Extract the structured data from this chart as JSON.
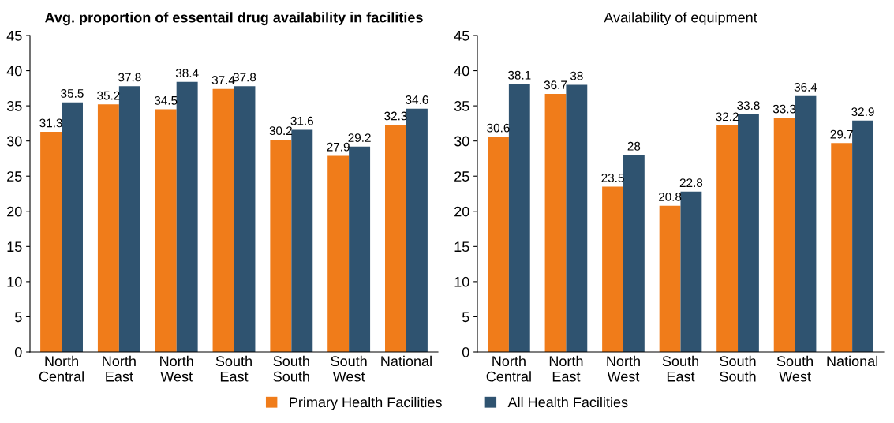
{
  "chart_data": [
    {
      "type": "bar",
      "title": "Avg. proportion of essentail drug availability in facilities",
      "categories": [
        "North\nCentral",
        "North\nEast",
        "North\nWest",
        "South\nEast",
        "South\nSouth",
        "South\nWest",
        "National"
      ],
      "series": [
        {
          "name": "Primary Health Facilities",
          "color": "#f07c1a",
          "values": [
            31.3,
            35.2,
            34.5,
            37.4,
            30.2,
            27.9,
            32.3
          ]
        },
        {
          "name": "All Health Facilities",
          "color": "#2f5370",
          "values": [
            35.5,
            37.8,
            38.4,
            37.8,
            31.6,
            29.2,
            34.6
          ]
        }
      ],
      "ylim": [
        0,
        45
      ],
      "yticks": [
        0,
        5,
        10,
        15,
        20,
        25,
        30,
        35,
        40,
        45
      ],
      "data_labels": true,
      "grid": false,
      "legend": "bottom"
    },
    {
      "type": "bar",
      "title": "Availability of equipment",
      "categories": [
        "North\nCentral",
        "North\nEast",
        "North\nWest",
        "South\nEast",
        "South\nSouth",
        "South\nWest",
        "National"
      ],
      "series": [
        {
          "name": "Primary Health Facilities",
          "color": "#f07c1a",
          "values": [
            30.6,
            36.7,
            23.5,
            20.8,
            32.2,
            33.3,
            29.7
          ]
        },
        {
          "name": "All Health Facilities",
          "color": "#2f5370",
          "values": [
            38.1,
            38,
            28,
            22.8,
            33.8,
            36.4,
            32.9
          ]
        }
      ],
      "ylim": [
        0,
        45
      ],
      "yticks": [
        0,
        5,
        10,
        15,
        20,
        25,
        30,
        35,
        40,
        45
      ],
      "data_labels": true,
      "grid": false,
      "legend": "bottom"
    }
  ]
}
